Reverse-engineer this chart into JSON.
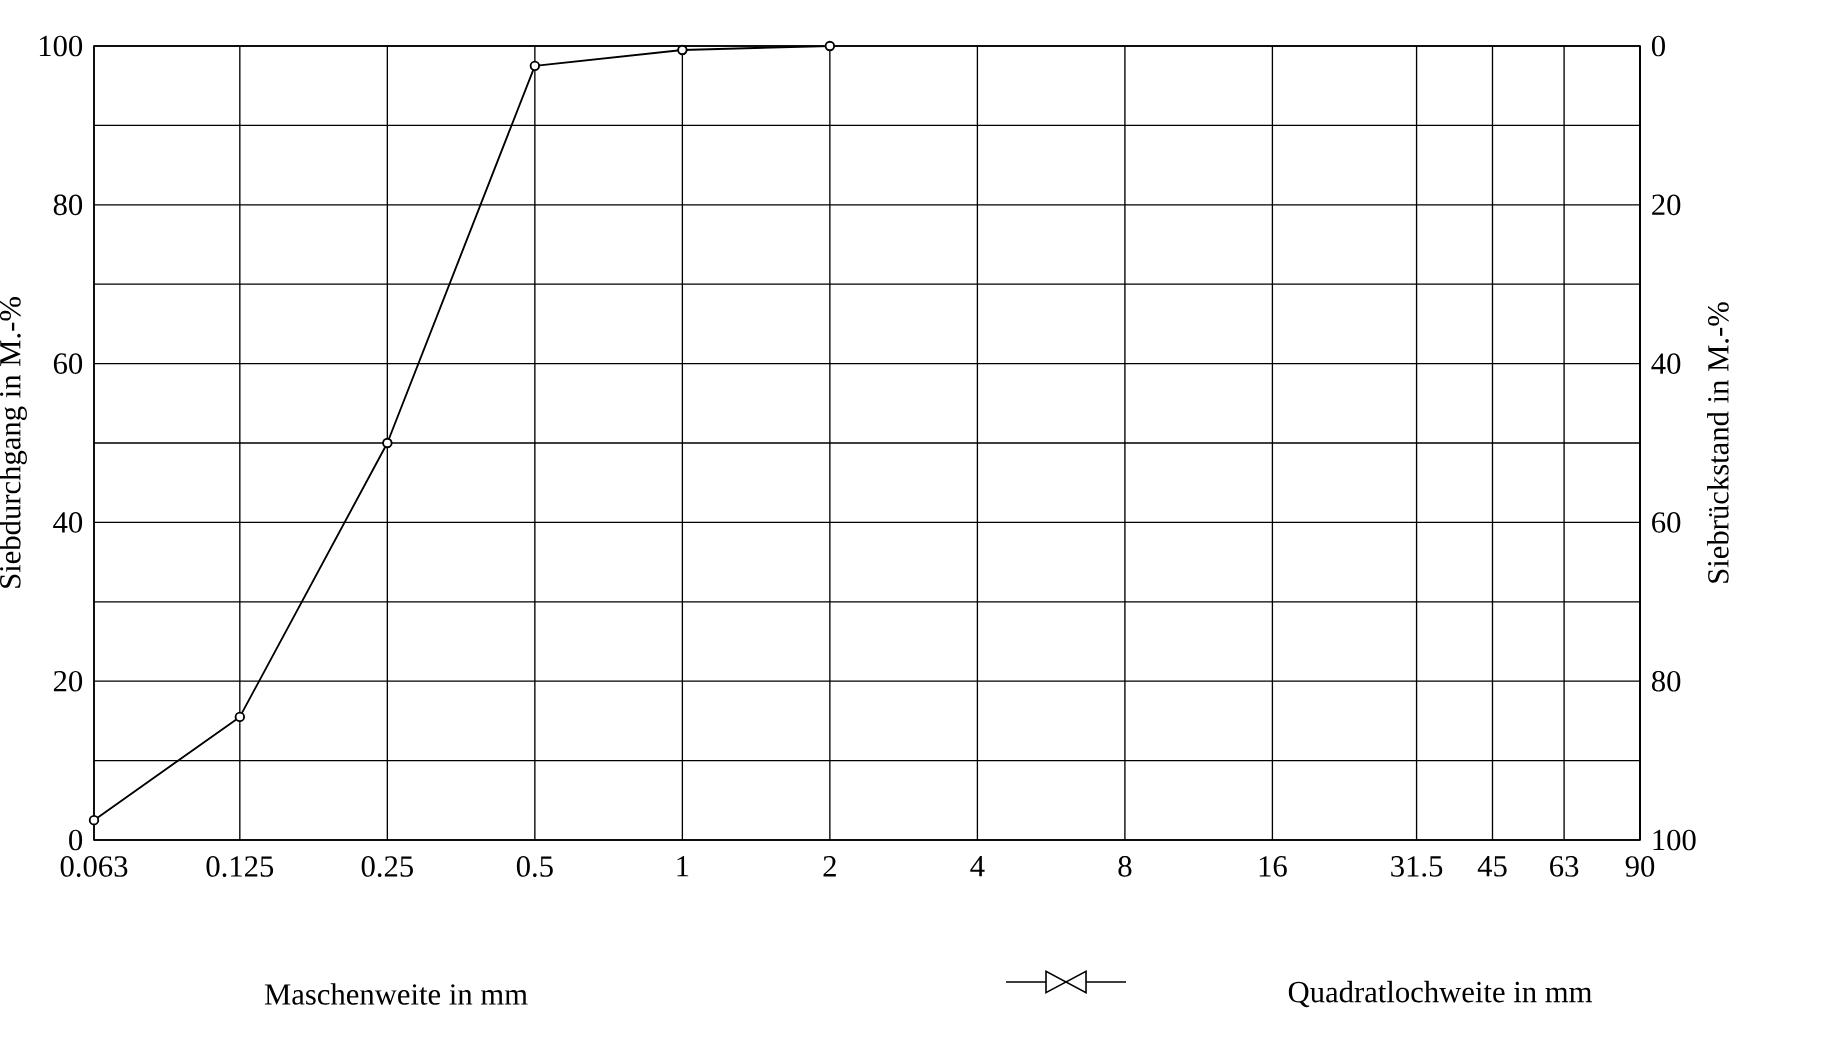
{
  "chart_data": {
    "type": "line",
    "xlabel": "Maschenweite in mm",
    "ylabel": "Siebdurchgang in M.-%",
    "y2label": "Siebrückstand in M.-%",
    "annotations": [
      "Quadratlochweite in mm"
    ],
    "log": "x",
    "x": [
      0.063,
      0.125,
      0.25,
      0.5,
      1,
      2
    ],
    "series": [
      {
        "color": "#000000",
        "values": [
          2.5,
          15.5,
          50,
          97.5,
          99.5,
          100
        ]
      }
    ],
    "xlim": [
      0.063,
      90
    ],
    "xticks": [
      0.063,
      0.125,
      0.25,
      0.5,
      1,
      2,
      4,
      8,
      16,
      31.5,
      45,
      63,
      90
    ],
    "ylim": [
      0,
      100
    ],
    "yticks": [
      0,
      {
        "value": 10,
        "label": null
      },
      20,
      {
        "value": 30,
        "label": null
      },
      40,
      {
        "value": 50,
        "label": null
      },
      60,
      {
        "value": 70,
        "label": null
      },
      80,
      {
        "value": 90,
        "label": null
      },
      100
    ],
    "y2lim": [
      100,
      0
    ],
    "y2ticks": [
      0,
      20,
      40,
      60,
      80,
      100
    ],
    "grid": true,
    "marker": "circle",
    "line_style": "solid"
  }
}
